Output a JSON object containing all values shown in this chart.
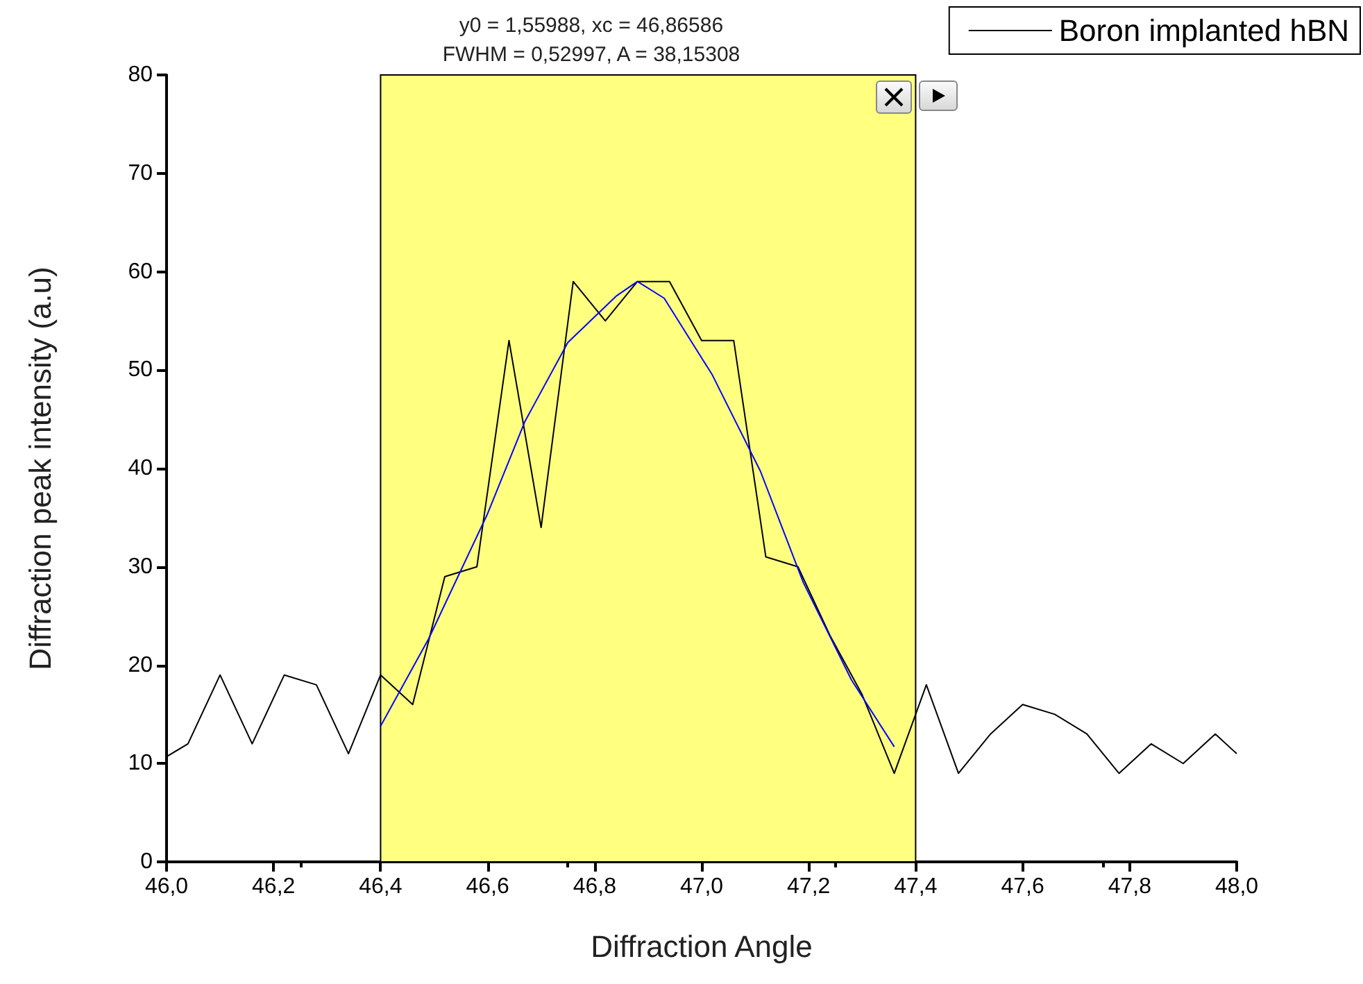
{
  "chart_data": {
    "type": "line",
    "xlabel": "Diffraction Angle",
    "ylabel": "Diffraction peak intensity (a.u)",
    "annotations": [
      "y0 = 1,55988, xc = 46,86586",
      "FWHM = 0,52997, A = 38,15308"
    ],
    "series": [
      {
        "name": "Boron implanted hBN",
        "color": "#000000",
        "x": [
          46.0,
          46.04,
          46.1,
          46.16,
          46.22,
          46.28,
          46.34,
          46.4,
          46.46,
          46.52,
          46.58,
          46.64,
          46.7,
          46.76,
          46.82,
          46.88,
          46.94,
          47.0,
          47.06,
          47.12,
          47.18,
          47.24,
          47.3,
          47.36,
          47.42,
          47.48,
          47.54,
          47.6,
          47.66,
          47.72,
          47.78,
          47.84,
          47.9,
          47.96,
          48.0
        ],
        "values": [
          10.7,
          12,
          19,
          12,
          19,
          18,
          11,
          19,
          16,
          29,
          30,
          53,
          34,
          59,
          55,
          59,
          59,
          53,
          53,
          31,
          30,
          23,
          17,
          9,
          18,
          9,
          13,
          16,
          15,
          13,
          9,
          12,
          10,
          13,
          11
        ]
      },
      {
        "type": "line",
        "color": "#0000ff",
        "x": [
          46.4,
          46.49,
          46.6,
          46.67,
          46.75,
          46.84,
          46.88,
          46.93,
          47.02,
          47.11,
          47.19,
          47.28,
          47.36
        ],
        "values": [
          13.8,
          22.7,
          35.4,
          44.8,
          52.8,
          57.5,
          59,
          57.3,
          49.5,
          39.7,
          28.4,
          18.5,
          11.7
        ]
      }
    ],
    "bands": [
      {
        "axis": "x",
        "from": 46.4,
        "to": 47.4,
        "color": "#ffff80"
      }
    ],
    "xlim": [
      46.0,
      48.0
    ],
    "xticks": [
      {
        "value": 46.0,
        "label": "46,0"
      },
      {
        "value": 46.2,
        "label": "46,2"
      },
      {
        "value": 46.4,
        "label": "46,4"
      },
      {
        "value": 46.6,
        "label": "46,6"
      },
      {
        "value": 46.8,
        "label": "46,8"
      },
      {
        "value": 47.0,
        "label": "47,0"
      },
      {
        "value": 47.2,
        "label": "47,2"
      },
      {
        "value": 47.4,
        "label": "47,4"
      },
      {
        "value": 47.6,
        "label": "47,6"
      },
      {
        "value": 47.8,
        "label": "47,8"
      },
      {
        "value": 48.0,
        "label": "48,0"
      }
    ],
    "ylim": [
      0,
      80
    ],
    "yticks": [
      0,
      10,
      20,
      30,
      40,
      50,
      60,
      70,
      80
    ],
    "grid": false,
    "legend": "top right",
    "marker": "none",
    "line_style": "solid"
  }
}
